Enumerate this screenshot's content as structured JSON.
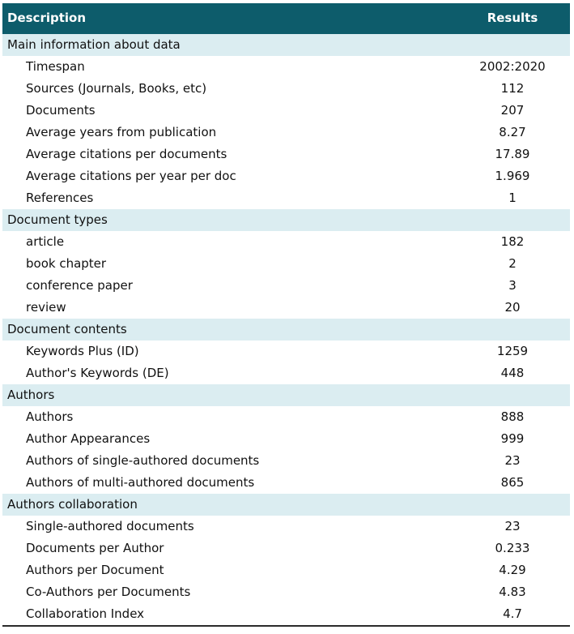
{
  "header": {
    "description_label": "Description",
    "results_label": "Results"
  },
  "rows": [
    {
      "type": "section",
      "label": "Main information about data",
      "value": ""
    },
    {
      "type": "item",
      "label": "Timespan",
      "value": "2002:2020"
    },
    {
      "type": "item",
      "label": "Sources (Journals, Books, etc)",
      "value": "112"
    },
    {
      "type": "item",
      "label": "Documents",
      "value": "207"
    },
    {
      "type": "item",
      "label": "Average years from publication",
      "value": "8.27"
    },
    {
      "type": "item",
      "label": "Average citations per documents",
      "value": "17.89"
    },
    {
      "type": "item",
      "label": "Average citations per year per doc",
      "value": "1.969"
    },
    {
      "type": "item",
      "label": "References",
      "value": "1"
    },
    {
      "type": "section",
      "label": "Document types",
      "value": ""
    },
    {
      "type": "item",
      "label": "article",
      "value": "182"
    },
    {
      "type": "item",
      "label": "book chapter",
      "value": "2"
    },
    {
      "type": "item",
      "label": "conference paper",
      "value": "3"
    },
    {
      "type": "item",
      "label": "review",
      "value": "20"
    },
    {
      "type": "section",
      "label": "Document contents",
      "value": ""
    },
    {
      "type": "item",
      "label": "Keywords Plus (ID)",
      "value": "1259"
    },
    {
      "type": "item",
      "label": "Author's Keywords (DE)",
      "value": "448"
    },
    {
      "type": "section",
      "label": "Authors",
      "value": ""
    },
    {
      "type": "item",
      "label": "Authors",
      "value": "888"
    },
    {
      "type": "item",
      "label": "Author Appearances",
      "value": "999"
    },
    {
      "type": "item",
      "label": "Authors of single-authored documents",
      "value": "23"
    },
    {
      "type": "item",
      "label": "Authors of multi-authored documents",
      "value": "865"
    },
    {
      "type": "section",
      "label": "Authors collaboration",
      "value": ""
    },
    {
      "type": "item",
      "label": "Single-authored documents",
      "value": "23"
    },
    {
      "type": "item",
      "label": "Documents per Author",
      "value": "0.233"
    },
    {
      "type": "item",
      "label": "Authors per Document",
      "value": "4.29"
    },
    {
      "type": "item",
      "label": "Co-Authors per Documents",
      "value": "4.83"
    },
    {
      "type": "item",
      "label": "Collaboration Index",
      "value": "4.7"
    }
  ]
}
